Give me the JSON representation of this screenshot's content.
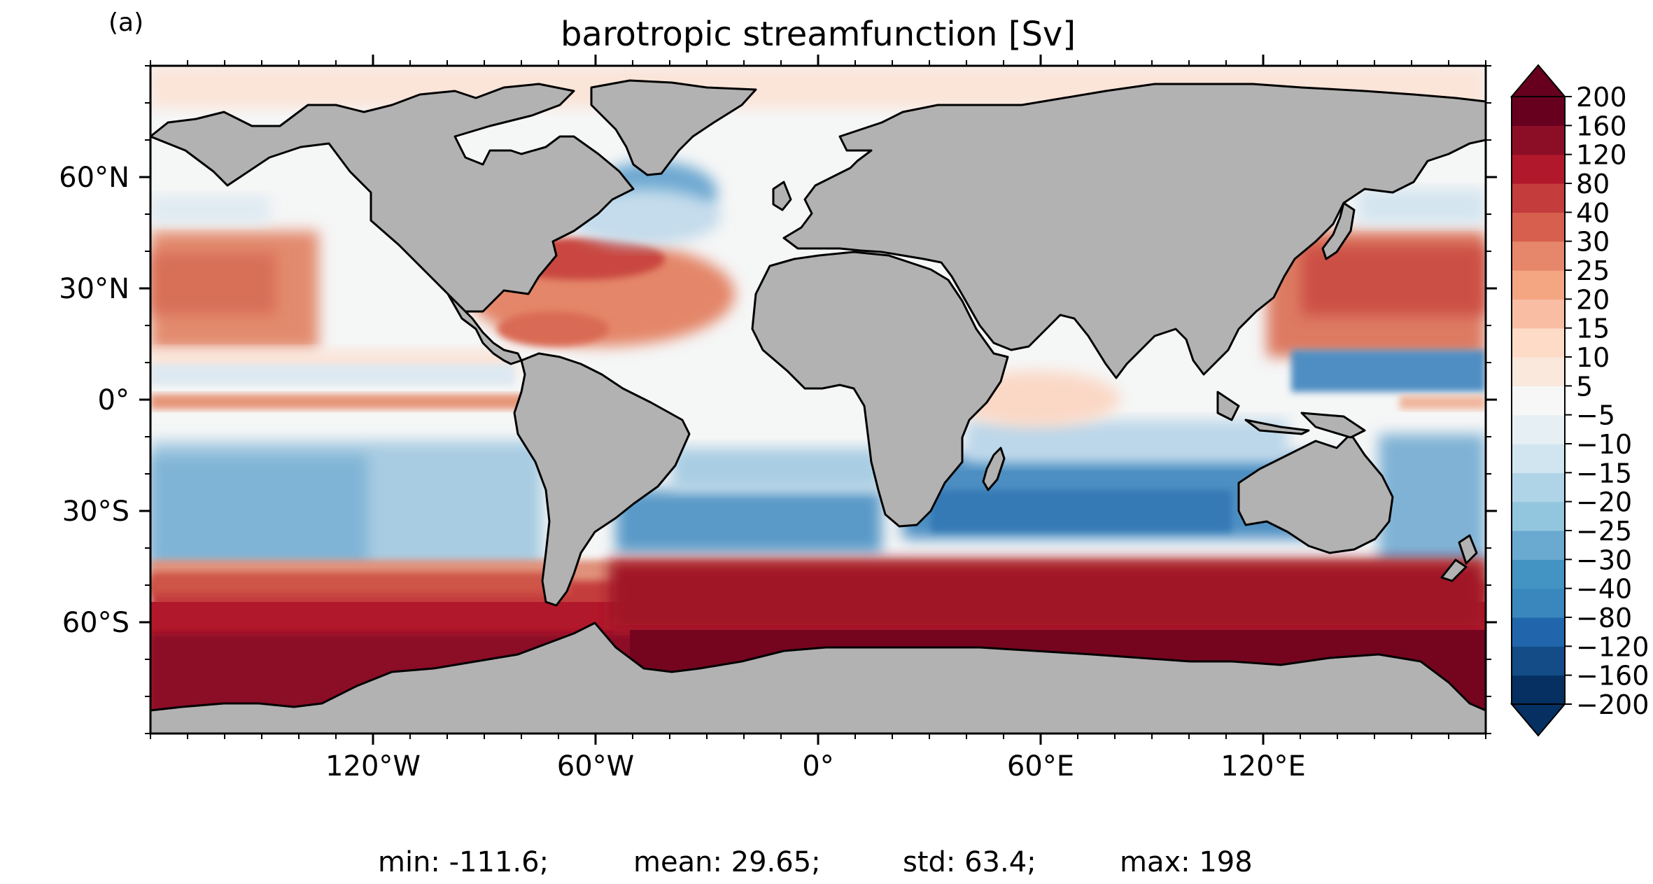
{
  "panel_label": "(a)",
  "title": "barotropic streamfunction [Sv]",
  "map": {
    "projection": "equirectangular",
    "lon_range": [
      -180,
      180
    ],
    "lat_range": [
      -90,
      90
    ],
    "land_color": "#b2b2b2",
    "coastline_color": "#000000",
    "lat_ticks": [
      {
        "value": 60,
        "label": "60°N"
      },
      {
        "value": 30,
        "label": "30°N"
      },
      {
        "value": 0,
        "label": "0°"
      },
      {
        "value": -30,
        "label": "30°S"
      },
      {
        "value": -60,
        "label": "60°S"
      }
    ],
    "lon_ticks": [
      {
        "value": -120,
        "label": "120°W"
      },
      {
        "value": -60,
        "label": "60°W"
      },
      {
        "value": 0,
        "label": "0°"
      },
      {
        "value": 60,
        "label": "60°E"
      },
      {
        "value": 120,
        "label": "120°E"
      }
    ]
  },
  "colorbar": {
    "extend": "both",
    "levels": [
      -200,
      -160,
      -120,
      -80,
      -40,
      -30,
      -25,
      -20,
      -15,
      -10,
      -5,
      5,
      10,
      15,
      20,
      25,
      30,
      40,
      80,
      120,
      160,
      200
    ],
    "labels": [
      "200",
      "160",
      "120",
      "80",
      "40",
      "30",
      "25",
      "20",
      "15",
      "10",
      "5",
      "−5",
      "−10",
      "−15",
      "−20",
      "−25",
      "−30",
      "−40",
      "−80",
      "−120",
      "−160",
      "−200"
    ],
    "colors": [
      "#053061",
      "#134c87",
      "#2166ac",
      "#3a87be",
      "#4393c3",
      "#6aa9d0",
      "#92c5de",
      "#b0d4e7",
      "#d1e5f0",
      "#e6eff4",
      "#f7f7f7",
      "#fae8dd",
      "#fddbc7",
      "#f8bda3",
      "#f4a582",
      "#e6866a",
      "#d6604d",
      "#c43c3c",
      "#b2182b",
      "#8b0e26",
      "#67001f"
    ],
    "over_color": "#67001f",
    "under_color": "#053061"
  },
  "stats": {
    "min": "min: -111.6;",
    "mean": "mean: 29.65;",
    "std": "std: 63.4;",
    "max": "max: 198"
  }
}
